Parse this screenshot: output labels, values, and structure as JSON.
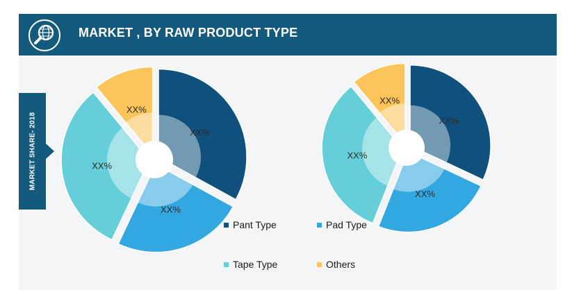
{
  "header": {
    "title": "MARKET , BY RAW PRODUCT TYPE",
    "icon": "magnifier-globe-icon",
    "color": "#145a7d"
  },
  "side_tab": {
    "label": "MARKET SHARE- 2018"
  },
  "chart_data": [
    {
      "type": "pie",
      "categories": [
        "Pant Type",
        "Pad Type",
        "Tape Type",
        "Others"
      ],
      "values": [
        33,
        24,
        32,
        11
      ],
      "labels": [
        "XX%",
        "XX%",
        "XX%",
        "XX%"
      ],
      "colors": [
        "#0f517c",
        "#33a7df",
        "#64cfd8",
        "#fcc45a"
      ],
      "donut": true
    },
    {
      "type": "pie",
      "categories": [
        "Pant Type",
        "Pad Type",
        "Tape Type",
        "Others"
      ],
      "values": [
        32,
        24,
        33,
        11
      ],
      "labels": [
        "XX%",
        "XX%",
        "XX%",
        "XX%"
      ],
      "colors": [
        "#0f517c",
        "#33a7df",
        "#64cfd8",
        "#fcc45a"
      ],
      "donut": true
    }
  ],
  "legend": {
    "items": [
      {
        "label": "Pant Type",
        "color": "#0f517c"
      },
      {
        "label": "Pad Type",
        "color": "#33a7df"
      },
      {
        "label": "Tape Type",
        "color": "#64cfd8"
      },
      {
        "label": "Others",
        "color": "#fcc45a"
      }
    ]
  }
}
